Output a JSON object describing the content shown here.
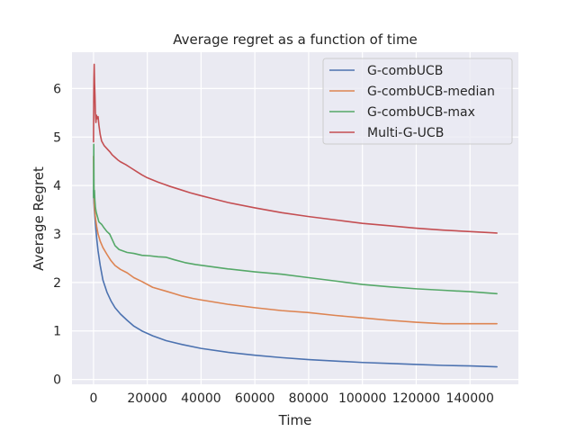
{
  "chart_data": {
    "type": "line",
    "title": "Average regret as a function of time",
    "xlabel": "Time",
    "ylabel": "Average Regret",
    "xlim": [
      -8000,
      158000
    ],
    "ylim": [
      -0.1,
      6.75
    ],
    "xticks": [
      0,
      20000,
      40000,
      60000,
      80000,
      100000,
      120000,
      140000
    ],
    "yticks": [
      0,
      1,
      2,
      3,
      4,
      5,
      6
    ],
    "grid": true,
    "background": "#eaeaf2",
    "legend_position": "top-right",
    "series": [
      {
        "name": "G-combUCB",
        "color": "#4c72b0",
        "x": [
          0,
          150,
          300,
          500,
          800,
          1200,
          1700,
          2500,
          3500,
          5000,
          6500,
          8000,
          10000,
          12500,
          15000,
          18000,
          22000,
          27000,
          33000,
          40000,
          50000,
          60000,
          70000,
          80000,
          90000,
          100000,
          110000,
          120000,
          130000,
          140000,
          150000
        ],
        "y": [
          3.9,
          3.65,
          3.5,
          3.35,
          3.15,
          2.9,
          2.65,
          2.35,
          2.05,
          1.8,
          1.62,
          1.48,
          1.35,
          1.22,
          1.1,
          1.0,
          0.9,
          0.8,
          0.72,
          0.64,
          0.56,
          0.5,
          0.45,
          0.41,
          0.38,
          0.35,
          0.33,
          0.31,
          0.29,
          0.28,
          0.26
        ]
      },
      {
        "name": "G-combUCB-median",
        "color": "#dd8452",
        "x": [
          0,
          150,
          300,
          500,
          800,
          1200,
          1700,
          2500,
          3500,
          5000,
          6500,
          8000,
          10000,
          12500,
          15000,
          18000,
          22000,
          27000,
          30000,
          33000,
          37000,
          40000,
          50000,
          60000,
          70000,
          80000,
          90000,
          100000,
          110000,
          120000,
          130000,
          140000,
          150000
        ],
        "y": [
          4.6,
          3.85,
          3.6,
          3.45,
          3.3,
          3.15,
          3.0,
          2.85,
          2.72,
          2.58,
          2.45,
          2.35,
          2.27,
          2.2,
          2.1,
          2.02,
          1.9,
          1.82,
          1.77,
          1.72,
          1.67,
          1.64,
          1.55,
          1.48,
          1.42,
          1.38,
          1.32,
          1.27,
          1.22,
          1.18,
          1.15,
          1.15,
          1.15
        ]
      },
      {
        "name": "G-combUCB-max",
        "color": "#55a868",
        "x": [
          0,
          100,
          200,
          350,
          500,
          700,
          1000,
          1500,
          2000,
          3000,
          4000,
          5000,
          6000,
          7000,
          8000,
          9500,
          11000,
          12500,
          15000,
          18000,
          21000,
          24000,
          27000,
          30000,
          34000,
          38000,
          42000,
          50000,
          60000,
          70000,
          80000,
          90000,
          100000,
          110000,
          120000,
          130000,
          140000,
          150000
        ],
        "y": [
          3.75,
          4.85,
          3.75,
          3.9,
          3.7,
          3.55,
          3.45,
          3.35,
          3.25,
          3.2,
          3.12,
          3.05,
          3.0,
          2.88,
          2.76,
          2.68,
          2.65,
          2.62,
          2.6,
          2.56,
          2.55,
          2.53,
          2.52,
          2.47,
          2.41,
          2.37,
          2.34,
          2.28,
          2.22,
          2.17,
          2.1,
          2.03,
          1.96,
          1.91,
          1.87,
          1.84,
          1.81,
          1.77
        ]
      },
      {
        "name": "Multi-G-UCB",
        "color": "#c44e52",
        "x": [
          0,
          80,
          150,
          250,
          400,
          550,
          700,
          900,
          1100,
          1400,
          1700,
          2000,
          2500,
          3000,
          4000,
          5000,
          6000,
          7000,
          8000,
          9000,
          10000,
          12000,
          14000,
          16000,
          18000,
          20000,
          24000,
          28000,
          32000,
          36000,
          40000,
          45000,
          50000,
          60000,
          70000,
          80000,
          90000,
          100000,
          110000,
          120000,
          130000,
          140000,
          150000
        ],
        "y": [
          4.9,
          5.8,
          6.2,
          6.5,
          6.1,
          5.85,
          5.5,
          5.3,
          5.45,
          5.38,
          5.42,
          5.25,
          5.05,
          4.92,
          4.82,
          4.76,
          4.7,
          4.63,
          4.58,
          4.53,
          4.49,
          4.43,
          4.36,
          4.29,
          4.22,
          4.16,
          4.07,
          3.99,
          3.92,
          3.85,
          3.79,
          3.72,
          3.65,
          3.54,
          3.44,
          3.36,
          3.29,
          3.22,
          3.17,
          3.12,
          3.08,
          3.05,
          3.02
        ]
      }
    ]
  }
}
